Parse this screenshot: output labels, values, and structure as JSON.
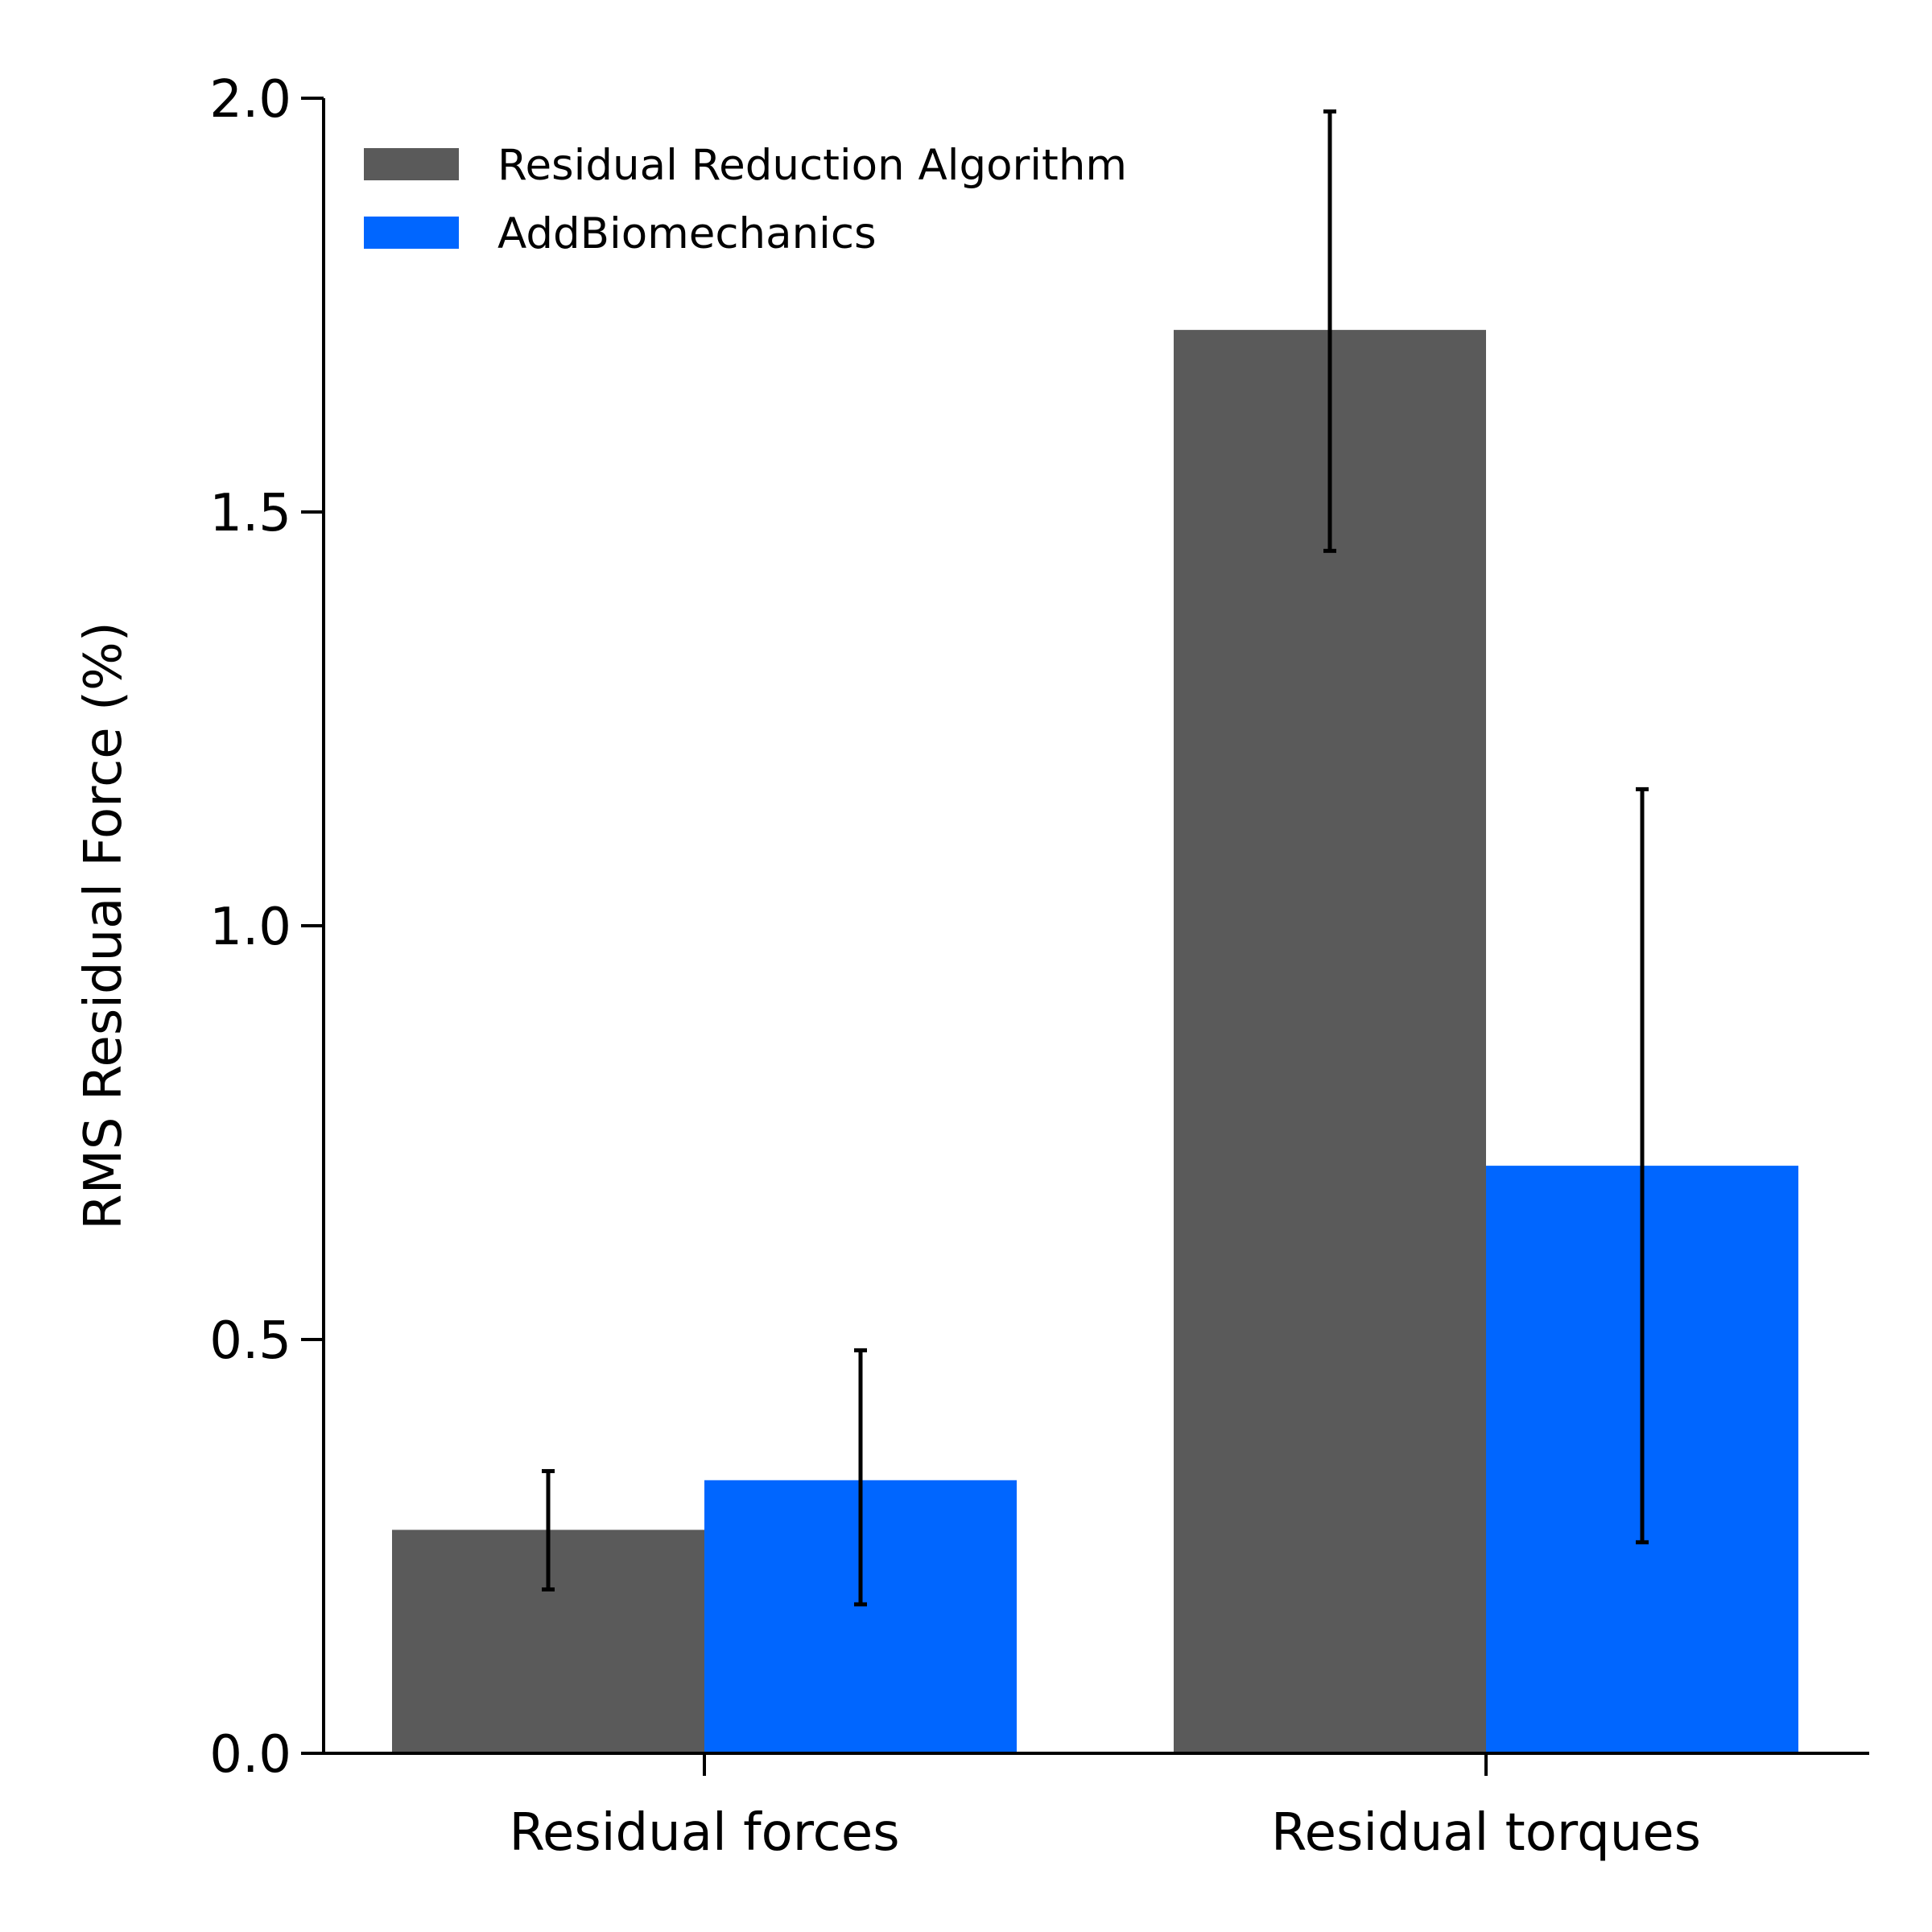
{
  "chart_data": {
    "type": "bar",
    "title": "",
    "xlabel": "",
    "ylabel": "RMS Residual Force (%)",
    "ylim": [
      0,
      2.0
    ],
    "yticks": [
      0.0,
      0.5,
      1.0,
      1.5,
      2.0
    ],
    "ytick_labels": [
      "0.0",
      "0.5",
      "1.0",
      "1.5",
      "2.0"
    ],
    "categories": [
      "Residual forces",
      "Residual torques"
    ],
    "grid": false,
    "legend_position": "top-left",
    "series": [
      {
        "name": "Residual Reduction Algorithm",
        "color": "#5a5a5a",
        "values": [
          0.27,
          1.72
        ],
        "error_low": [
          0.198,
          1.453
        ],
        "error_high": [
          0.341,
          1.984
        ]
      },
      {
        "name": "AddBiomechanics",
        "color": "#0066ff",
        "values": [
          0.33,
          0.71
        ],
        "error_low": [
          0.18,
          0.255
        ],
        "error_high": [
          0.487,
          1.165
        ]
      }
    ]
  }
}
